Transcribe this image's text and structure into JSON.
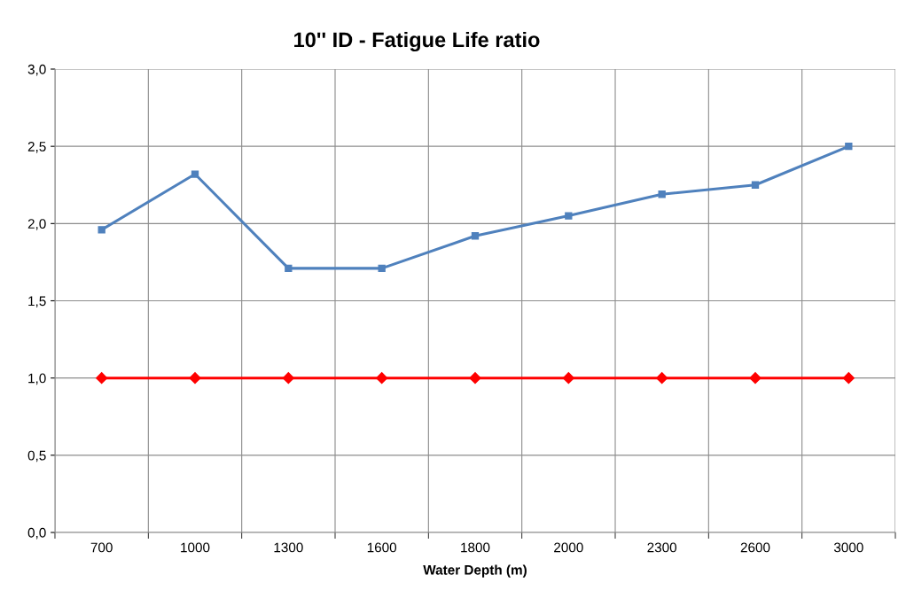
{
  "chart_data": {
    "type": "line",
    "title": "10'' ID - Fatigue Life ratio",
    "xlabel": "Water Depth (m)",
    "categories": [
      "700",
      "1000",
      "1300",
      "1600",
      "1800",
      "2000",
      "2300",
      "2600",
      "3000"
    ],
    "series": [
      {
        "color": "#4f81bd",
        "marker": "square",
        "values": [
          1.96,
          2.32,
          1.71,
          1.71,
          1.92,
          2.05,
          2.19,
          2.25,
          2.5
        ]
      },
      {
        "color": "#ff0000",
        "marker": "diamond",
        "values": [
          1.0,
          1.0,
          1.0,
          1.0,
          1.0,
          1.0,
          1.0,
          1.0,
          1.0
        ]
      }
    ],
    "ylim": [
      0,
      3
    ],
    "yticks": [
      {
        "value": 0,
        "label": "0,0"
      },
      {
        "value": 0.5,
        "label": "0,5"
      },
      {
        "value": 1,
        "label": "1,0"
      },
      {
        "value": 1.5,
        "label": "1,5"
      },
      {
        "value": 2,
        "label": "2,0"
      },
      {
        "value": 2.5,
        "label": "2,5"
      },
      {
        "value": 3,
        "label": "3,0"
      }
    ],
    "grid": true,
    "legend": false
  }
}
